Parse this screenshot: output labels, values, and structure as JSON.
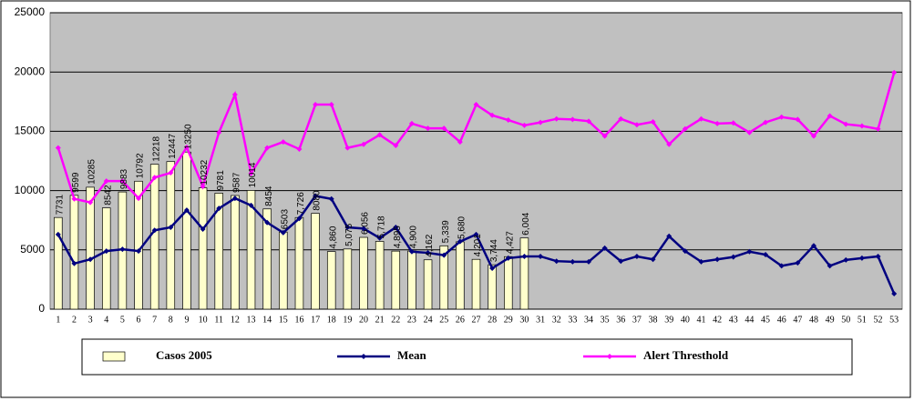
{
  "chart_data": {
    "type": "bar_line",
    "categories": [
      "1",
      "2",
      "3",
      "4",
      "5",
      "6",
      "7",
      "8",
      "9",
      "10",
      "11",
      "12",
      "13",
      "14",
      "15",
      "16",
      "17",
      "18",
      "19",
      "20",
      "21",
      "22",
      "23",
      "24",
      "25",
      "26",
      "27",
      "28",
      "29",
      "30",
      "31",
      "32",
      "33",
      "34",
      "35",
      "36",
      "37",
      "38",
      "39",
      "40",
      "41",
      "42",
      "43",
      "44",
      "45",
      "46",
      "47",
      "48",
      "49",
      "50",
      "51",
      "52",
      "53"
    ],
    "ylim": [
      0,
      25000
    ],
    "yticks": [
      0,
      5000,
      10000,
      15000,
      20000,
      25000
    ],
    "grid": true,
    "legend": "bottom",
    "series": [
      {
        "name": "Casos 2005",
        "kind": "bar",
        "color": "#ffffcc",
        "values": [
          7731,
          9599,
          10285,
          8542,
          9883,
          10792,
          12218,
          12447,
          13250,
          10232,
          9781,
          9587,
          10014,
          8454,
          6503,
          7726,
          8080,
          4860,
          5075,
          6056,
          5718,
          4895,
          4900,
          4162,
          5339,
          5680,
          4201,
          3744,
          4427,
          6004,
          null,
          null,
          null,
          null,
          null,
          null,
          null,
          null,
          null,
          null,
          null,
          null,
          null,
          null,
          null,
          null,
          null,
          null,
          null,
          null,
          null,
          null,
          null
        ],
        "value_labels": [
          "7731",
          "9599",
          "10285",
          "8542",
          "9883",
          "10792",
          "12218",
          "12447",
          "13250",
          "10232",
          "9781",
          "9587",
          "10014",
          "8454",
          "6503",
          "7,726",
          "8080",
          "4,860",
          "5,075",
          "6,056",
          "5,718",
          "4,895",
          "4,900",
          "4,162",
          "5,339",
          "5,680",
          "4,201",
          "3,744",
          "4,427",
          "6,004",
          null,
          null,
          null,
          null,
          null,
          null,
          null,
          null,
          null,
          null,
          null,
          null,
          null,
          null,
          null,
          null,
          null,
          null,
          null,
          null,
          null,
          null,
          null
        ]
      },
      {
        "name": "Mean",
        "kind": "line",
        "color": "#000080",
        "values": [
          6300,
          3850,
          4200,
          4900,
          5050,
          4900,
          6650,
          6900,
          8350,
          6750,
          8500,
          9350,
          8750,
          7300,
          6450,
          7650,
          9550,
          9300,
          6900,
          6800,
          6000,
          6900,
          4850,
          4750,
          4550,
          5700,
          6300,
          3450,
          4300,
          4450,
          4450,
          4050,
          4000,
          4000,
          5150,
          4050,
          4450,
          4200,
          6150,
          4900,
          4000,
          4200,
          4400,
          4850,
          4600,
          3650,
          3900,
          5350,
          3650,
          4150,
          4300,
          4450,
          1300
        ]
      },
      {
        "name": "Alert Thresthold",
        "kind": "line",
        "color": "#ff00ff",
        "values": [
          13600,
          9300,
          9000,
          10800,
          10800,
          9350,
          11100,
          11500,
          13650,
          10350,
          14900,
          18100,
          11450,
          13600,
          14100,
          13500,
          17250,
          17250,
          13600,
          13900,
          14700,
          13800,
          15650,
          15250,
          15250,
          14100,
          17250,
          16350,
          15950,
          15500,
          15750,
          16050,
          16000,
          15850,
          14600,
          16050,
          15550,
          15800,
          13900,
          15200,
          16050,
          15650,
          15700,
          14900,
          15750,
          16200,
          16000,
          14600,
          16300,
          15600,
          15450,
          15200,
          19950
        ]
      }
    ]
  }
}
